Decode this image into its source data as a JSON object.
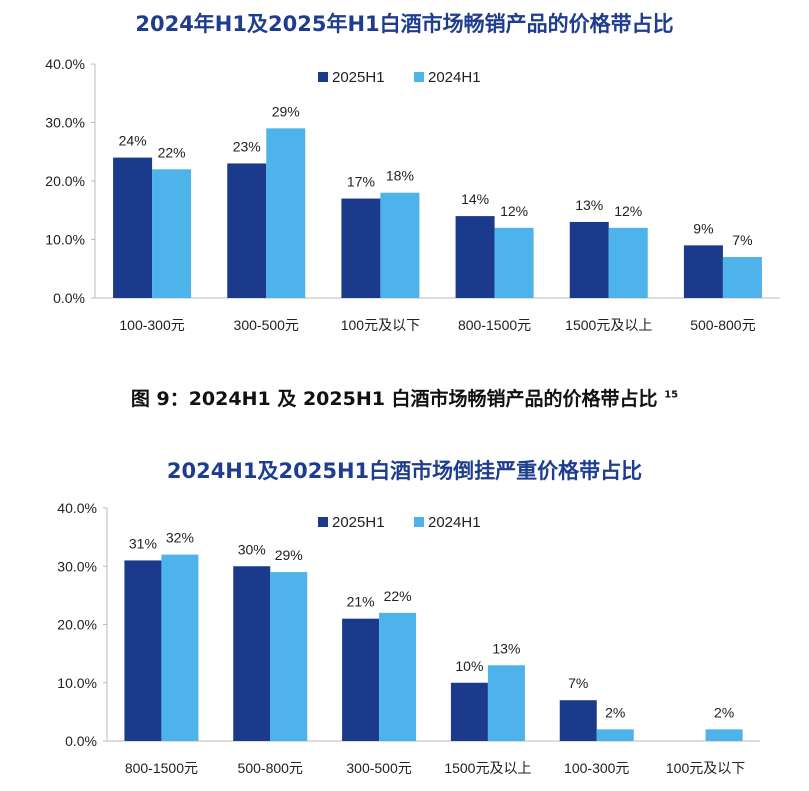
{
  "colors": {
    "2025H1": "#1b3a8c",
    "2024H1": "#4db3ea",
    "title": "#1f3d8f"
  },
  "caption": {
    "text": "图 9：2024H1 及 2025H1 白酒市场畅销产品的价格带占比",
    "sup": "15"
  },
  "chart_data": [
    {
      "type": "bar",
      "title": "2024年H1及2025年H1白酒市场畅销产品的价格带占比",
      "categories": [
        "100-300元",
        "300-500元",
        "100元及以下",
        "800-1500元",
        "1500元及以上",
        "500-800元"
      ],
      "series": [
        {
          "name": "2025H1",
          "values": [
            24,
            23,
            17,
            14,
            13,
            9
          ],
          "labels": [
            "24%",
            "23%",
            "17%",
            "14%",
            "13%",
            "9%"
          ]
        },
        {
          "name": "2024H1",
          "values": [
            22,
            29,
            18,
            12,
            12,
            7
          ],
          "labels": [
            "22%",
            "29%",
            "18%",
            "12%",
            "12%",
            "7%"
          ]
        }
      ],
      "ylim": [
        0,
        40
      ],
      "yticks": [
        "0.0%",
        "10.0%",
        "20.0%",
        "30.0%",
        "40.0%"
      ],
      "grid": false,
      "legend": "top-center"
    },
    {
      "type": "bar",
      "title": "2024H1及2025H1白酒市场倒挂严重价格带占比",
      "categories": [
        "800-1500元",
        "500-800元",
        "300-500元",
        "1500元及以上",
        "100-300元",
        "100元及以下"
      ],
      "series": [
        {
          "name": "2025H1",
          "values": [
            31,
            30,
            21,
            10,
            7,
            null
          ],
          "labels": [
            "31%",
            "30%",
            "21%",
            "10%",
            "7%",
            null
          ]
        },
        {
          "name": "2024H1",
          "values": [
            32,
            29,
            22,
            13,
            2,
            2
          ],
          "labels": [
            "32%",
            "29%",
            "22%",
            "13%",
            "2%",
            "2%"
          ]
        }
      ],
      "ylim": [
        0,
        40
      ],
      "yticks": [
        "0.0%",
        "10.0%",
        "20.0%",
        "30.0%",
        "40.0%"
      ],
      "grid": false,
      "legend": "top-center"
    }
  ]
}
